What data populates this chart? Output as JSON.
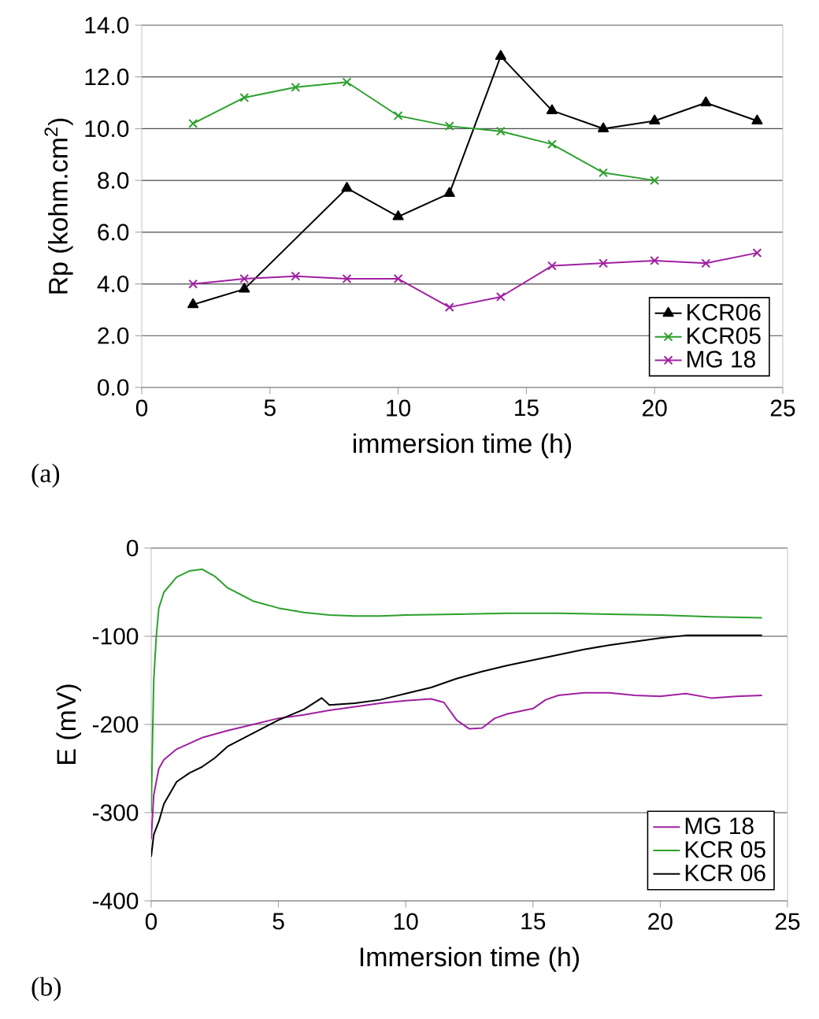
{
  "chart_data": [
    {
      "type": "line",
      "xlabel": "immersion time (h)",
      "ylabel": "Rp (kohm.cm$^{2}$)",
      "annotations": [
        "(a)"
      ],
      "xlim": [
        0,
        25
      ],
      "xticks": [
        0,
        5,
        10,
        15,
        20,
        25
      ],
      "ylim": [
        0,
        14
      ],
      "yticks": [
        {
          "value": 0,
          "label": "0.0"
        },
        {
          "value": 2,
          "label": "2.0"
        },
        {
          "value": 4,
          "label": "4.0"
        },
        {
          "value": 6,
          "label": "6.0"
        },
        {
          "value": 8,
          "label": "8.0"
        },
        {
          "value": 10,
          "label": "10.0"
        },
        {
          "value": 12,
          "label": "12.0"
        },
        {
          "value": 14,
          "label": "14.0"
        }
      ],
      "grid": "y",
      "legend": "bottom right",
      "series": [
        {
          "name": "KCR06",
          "color": "#000000",
          "marker": "triangle",
          "x": [
            2,
            4,
            8,
            10,
            12,
            14,
            16,
            18,
            20,
            22,
            24
          ],
          "values": [
            3.2,
            3.8,
            7.7,
            6.6,
            7.5,
            12.8,
            10.7,
            10.0,
            10.3,
            11.0,
            10.3
          ]
        },
        {
          "name": "KCR05",
          "color": "#2ca02c",
          "marker": "cross",
          "x": [
            2,
            4,
            6,
            8,
            10,
            12,
            14,
            16,
            18,
            20
          ],
          "values": [
            10.2,
            11.2,
            11.6,
            11.8,
            10.5,
            10.1,
            9.9,
            9.4,
            8.3,
            8.0
          ]
        },
        {
          "name": "MG 18",
          "color": "#a020a0",
          "marker": "cross",
          "x": [
            2,
            4,
            6,
            8,
            10,
            12,
            14,
            16,
            18,
            20,
            22,
            24
          ],
          "values": [
            4.0,
            4.2,
            4.3,
            4.2,
            4.2,
            3.1,
            3.5,
            4.7,
            4.8,
            4.9,
            4.8,
            5.2
          ]
        }
      ]
    },
    {
      "type": "line",
      "xlabel": "Immersion time (h)",
      "ylabel": "E (mV)",
      "annotations": [
        "(b)"
      ],
      "xlim": [
        0,
        25
      ],
      "xticks": [
        0,
        5,
        10,
        15,
        20,
        25
      ],
      "ylim": [
        -400,
        0
      ],
      "yticks": [
        -400,
        -300,
        -200,
        -100,
        0
      ],
      "grid": "y",
      "legend": "bottom right",
      "marker": "none",
      "series": [
        {
          "name": "MG 18",
          "color": "#a020a0",
          "x": [
            0,
            0.1,
            0.3,
            0.5,
            1,
            2,
            3,
            4,
            5,
            6,
            7,
            8,
            9,
            10,
            11,
            11.5,
            12,
            12.5,
            13,
            13.5,
            14,
            15,
            15.5,
            16,
            17,
            18,
            19,
            20,
            21,
            22,
            23,
            24
          ],
          "values": [
            -330,
            -280,
            -250,
            -240,
            -228,
            -215,
            -207,
            -200,
            -193,
            -189,
            -184,
            -180,
            -176,
            -173,
            -171,
            -175,
            -195,
            -205,
            -204,
            -193,
            -188,
            -182,
            -172,
            -167,
            -164,
            -164,
            -167,
            -168,
            -165,
            -170,
            -168,
            -167
          ]
        },
        {
          "name": "KCR 05",
          "color": "#2ca02c",
          "x": [
            0,
            0.05,
            0.1,
            0.2,
            0.3,
            0.5,
            1,
            1.5,
            2,
            2.5,
            3,
            4,
            5,
            6,
            7,
            8,
            9,
            10,
            12,
            14,
            16,
            18,
            20,
            22,
            24
          ],
          "values": [
            -300,
            -220,
            -150,
            -100,
            -68,
            -50,
            -33,
            -26,
            -24,
            -32,
            -45,
            -60,
            -68,
            -73,
            -76,
            -77,
            -77,
            -76,
            -75,
            -74,
            -74,
            -75,
            -76,
            -78,
            -79
          ]
        },
        {
          "name": "KCR 06",
          "color": "#000000",
          "x": [
            0,
            0.1,
            0.3,
            0.5,
            1,
            1.5,
            2,
            2.5,
            3,
            4,
            5,
            6,
            6.7,
            7,
            8,
            9,
            10,
            11,
            12,
            13,
            14,
            15,
            16,
            17,
            18,
            19,
            20,
            21,
            22,
            23,
            24
          ],
          "values": [
            -350,
            -325,
            -310,
            -290,
            -265,
            -255,
            -248,
            -238,
            -225,
            -210,
            -195,
            -183,
            -170,
            -178,
            -176,
            -172,
            -165,
            -158,
            -148,
            -140,
            -133,
            -127,
            -121,
            -115,
            -110,
            -106,
            -102,
            -99,
            -99,
            -99,
            -99
          ]
        }
      ]
    }
  ]
}
